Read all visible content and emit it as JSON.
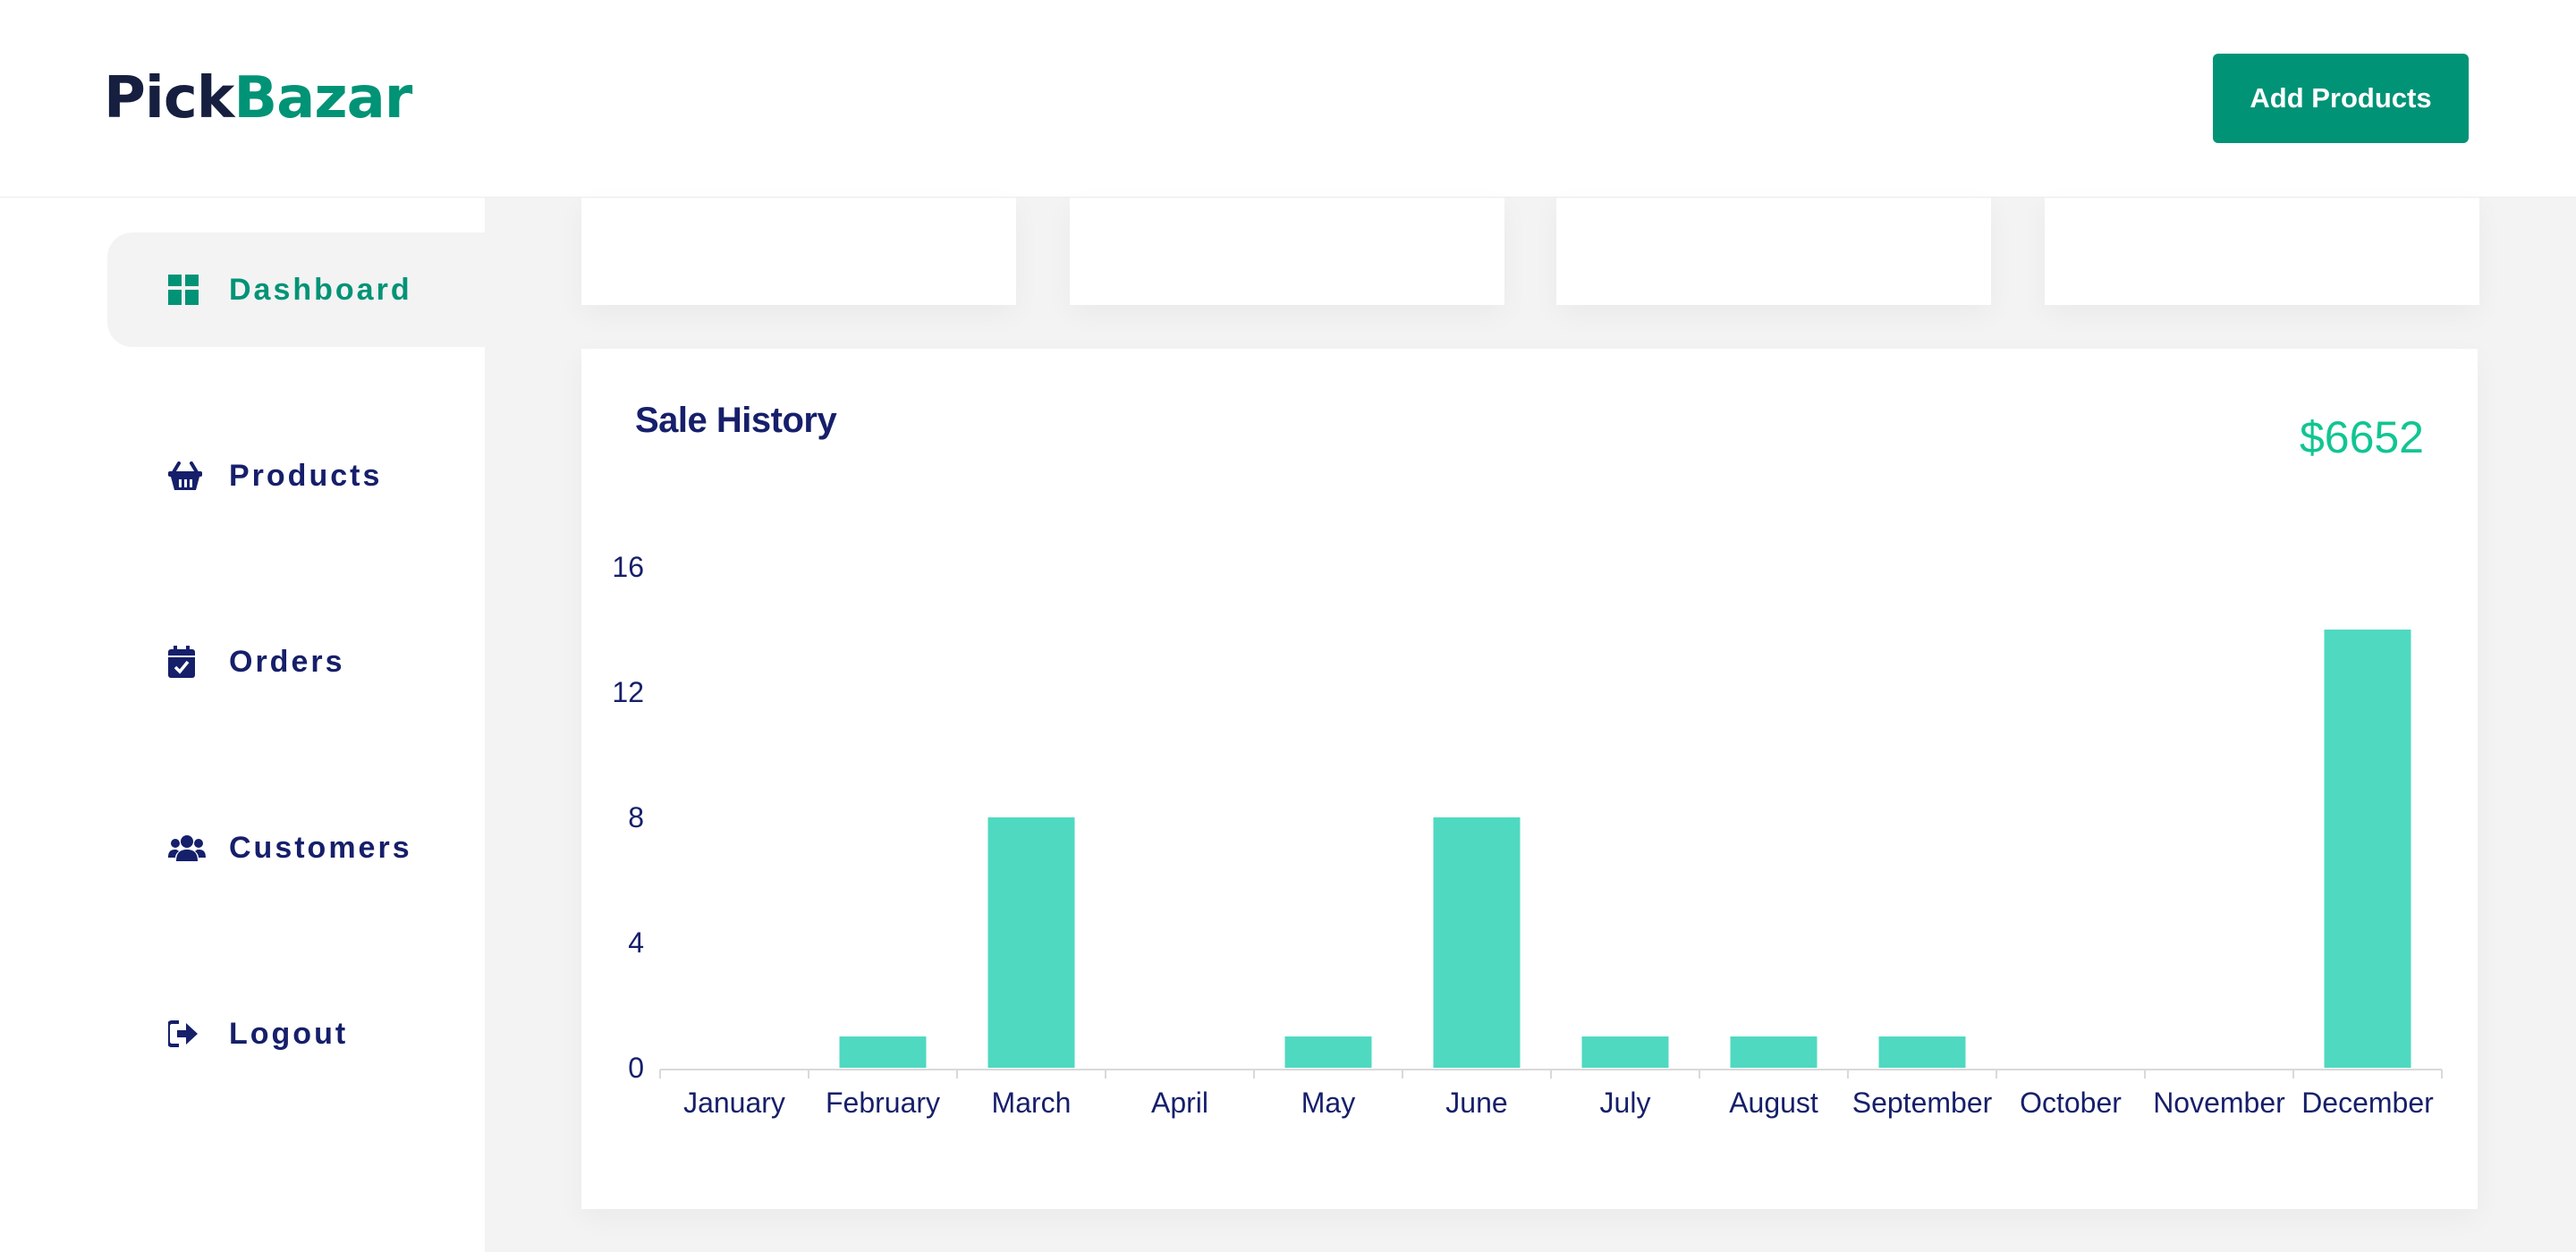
{
  "header": {
    "logo_pick": "Pick",
    "logo_bazar": "Bazar",
    "add_button": "Add Products"
  },
  "sidebar": {
    "items": [
      {
        "label": "Dashboard",
        "icon": "dashboard-grid-icon",
        "active": true
      },
      {
        "label": "Products",
        "icon": "basket-icon",
        "active": false
      },
      {
        "label": "Orders",
        "icon": "calendar-check-icon",
        "active": false
      },
      {
        "label": "Customers",
        "icon": "users-icon",
        "active": false
      },
      {
        "label": "Logout",
        "icon": "logout-icon",
        "active": false
      }
    ]
  },
  "colors": {
    "brand": "#019376",
    "navy": "#161f6a",
    "bar": "#4fd9c0",
    "total": "#11c592"
  },
  "sale_history": {
    "title": "Sale History",
    "total": "$6652"
  },
  "chart_data": {
    "type": "bar",
    "categories": [
      "January",
      "February",
      "March",
      "April",
      "May",
      "June",
      "July",
      "August",
      "September",
      "October",
      "November",
      "December"
    ],
    "values": [
      0,
      1,
      8,
      0,
      1,
      8,
      1,
      1,
      1,
      0,
      0,
      14
    ],
    "y_ticks": [
      0,
      4,
      8,
      12,
      16
    ],
    "ylim": [
      0,
      16
    ],
    "grid": false
  }
}
